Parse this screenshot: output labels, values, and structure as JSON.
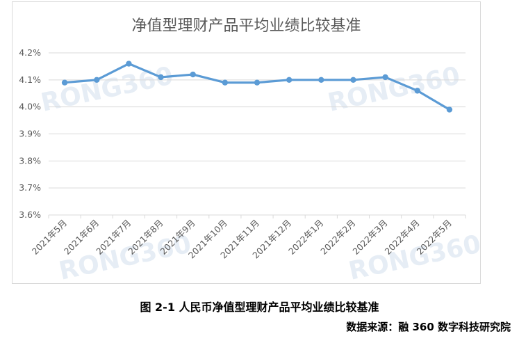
{
  "caption": "图 2-1 人民币净值型理财产品平均业绩比较基准",
  "source": "数据来源：融 360 数字科技研究院",
  "watermark": "RONG360",
  "colors": {
    "line": "#5b9bd5",
    "grid": "#d9d9d9",
    "text": "#595959"
  },
  "chart_data": {
    "type": "line",
    "title": "净值型理财产品平均业绩比较基准",
    "xlabel": "",
    "ylabel": "",
    "categories": [
      "2021年5月",
      "2021年6月",
      "2021年7月",
      "2021年8月",
      "2021年9月",
      "2021年10月",
      "2021年11月",
      "2021年12月",
      "2022年1月",
      "2022年2月",
      "2022年3月",
      "2022年4月",
      "2022年5月"
    ],
    "values": [
      4.09,
      4.1,
      4.16,
      4.11,
      4.12,
      4.09,
      4.09,
      4.1,
      4.1,
      4.1,
      4.11,
      4.06,
      3.99
    ],
    "ylim": [
      3.6,
      4.2
    ],
    "yticks": [
      "3.6%",
      "3.7%",
      "3.8%",
      "3.9%",
      "4.0%",
      "4.1%",
      "4.2%"
    ],
    "grid": true,
    "legend": "none"
  }
}
